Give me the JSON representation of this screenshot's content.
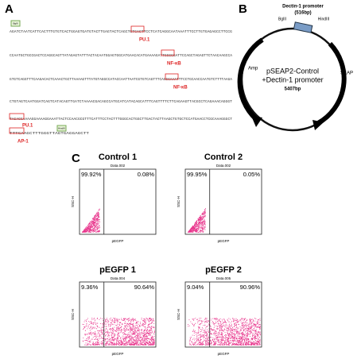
{
  "panels": {
    "a": "A",
    "b": "B",
    "c": "C"
  },
  "sequence": {
    "lines": [
      "AGATCTAATCATTCACTTTGTGTCACTGGAGTGATGTACTTGAGTACTCAGCTGTCACTTCCTCATCAGGCAATAAATTTCCTTGTGAGAGCCTTCCG",
      "CCAATGCTGCCGACTCCAGGCAGTTATAGAGTATTTACTACAATGGAGTGGCATGAACACATGAAAAGATTGGGGGATTCCAGCTAGAGTTCTAACAAGCCA",
      "GTGTCAGGTTTCAAGACACTCAAACTGCTTAAAAGTTTATGTAGGCCATACCAATTAATCGTGTCAGTTTCAGGGAAATTTCCTGCAACCAATGTCTTTTAAGA",
      "CTGTAGTCAATGGATCAGTCATACAGTTGATCTAAAACGACAGCCATGCATCATACAGCATTTCAGTTTTCTTCAGAAGTTACGCCTCAGAAACAGGGT",
      "TAGAGGAAAAGGAAAAGGAAATTACTCCAACGCGTTTCATTTCCTACTTTGGGCACTGGCTTGACTACTTAAGCTGTGCTCCATGAACCTCGCAAAGGGCT",
      "TTTCAAGCTTTGGGTTAGTGAGGAGCTT"
    ],
    "sites": [
      "PU.1",
      "NF-κB",
      "NF-κB",
      "PU.1",
      "AP-1"
    ],
    "tags": [
      "BglII",
      "HindIII"
    ]
  },
  "plasmid": {
    "promoter": "Dectin-1 promoter",
    "promoter_size": "(516bp)",
    "bgl": "BglII",
    "hind": "HindIII",
    "name": "pSEAP2-Control",
    "insert": "+Dectin-1 promoter",
    "size": "5407bp",
    "amp": "Amp",
    "seap": "SEAP"
  },
  "flow": {
    "xlabel": "pEGFP",
    "ylabel": "SSC-H",
    "plots": [
      {
        "title": "Control 1",
        "data": "Data.002",
        "left": "99.92%",
        "right": "0.08%"
      },
      {
        "title": "Control 2",
        "data": "Data.002",
        "left": "99.95%",
        "right": "0.05%"
      },
      {
        "title": "pEGFP 1",
        "data": "Data.004",
        "left": "9.36%",
        "right": "90.64%"
      },
      {
        "title": "pEGFP 2",
        "data": "Data.005",
        "left": "9.04%",
        "right": "90.96%"
      }
    ]
  }
}
